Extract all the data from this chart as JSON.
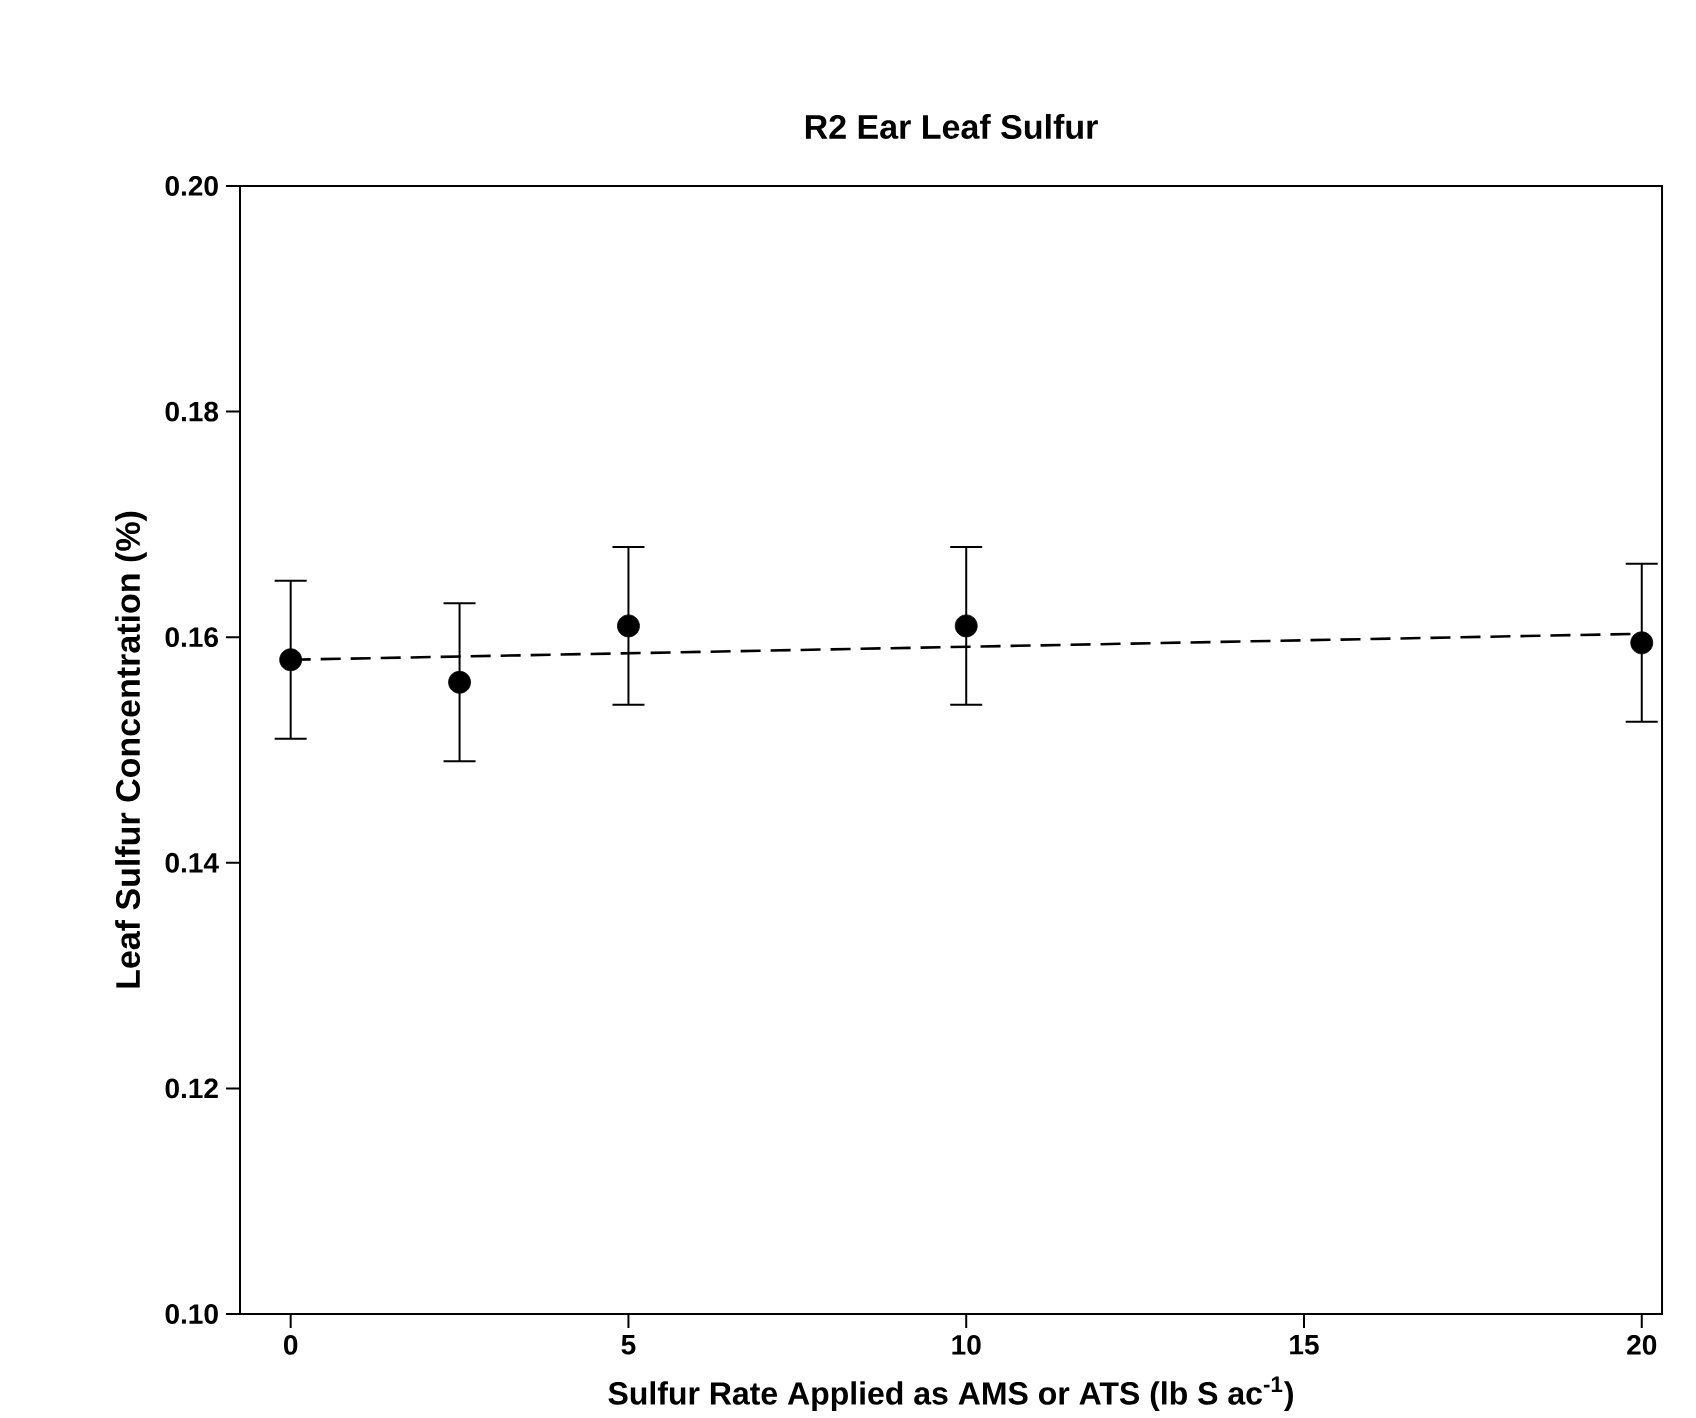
{
  "chart_data": {
    "type": "scatter",
    "title": "R2 Ear Leaf Sulfur",
    "xlabel": "Sulfur Rate Applied as AMS or ATS (lb S ac$^{-1}$)",
    "ylabel": "Leaf Sulfur Concentration (%)",
    "xlim": [
      -0.75,
      20.3
    ],
    "ylim": [
      0.1,
      0.2
    ],
    "xticks": [
      0,
      5,
      10,
      15,
      20
    ],
    "yticks": [
      {
        "value": 0.1,
        "label": "0.10"
      },
      {
        "value": 0.12,
        "label": "0.12"
      },
      {
        "value": 0.14,
        "label": "0.14"
      },
      {
        "value": 0.16,
        "label": "0.16"
      },
      {
        "value": 0.18,
        "label": "0.18"
      },
      {
        "value": 0.2,
        "label": "0.20"
      }
    ],
    "series": [
      {
        "color": "#000000",
        "marker": "circle",
        "x": [
          0,
          2.5,
          5,
          10,
          20
        ],
        "values": [
          0.158,
          0.156,
          0.161,
          0.161,
          0.1595
        ],
        "errors": [
          0.007,
          0.007,
          0.007,
          0.007,
          0.007
        ]
      },
      {
        "type": "line",
        "color": "#000000",
        "marker": "none",
        "line_style": "dashed",
        "x": [
          0,
          20
        ],
        "values": [
          0.158,
          0.1603
        ]
      }
    ]
  }
}
